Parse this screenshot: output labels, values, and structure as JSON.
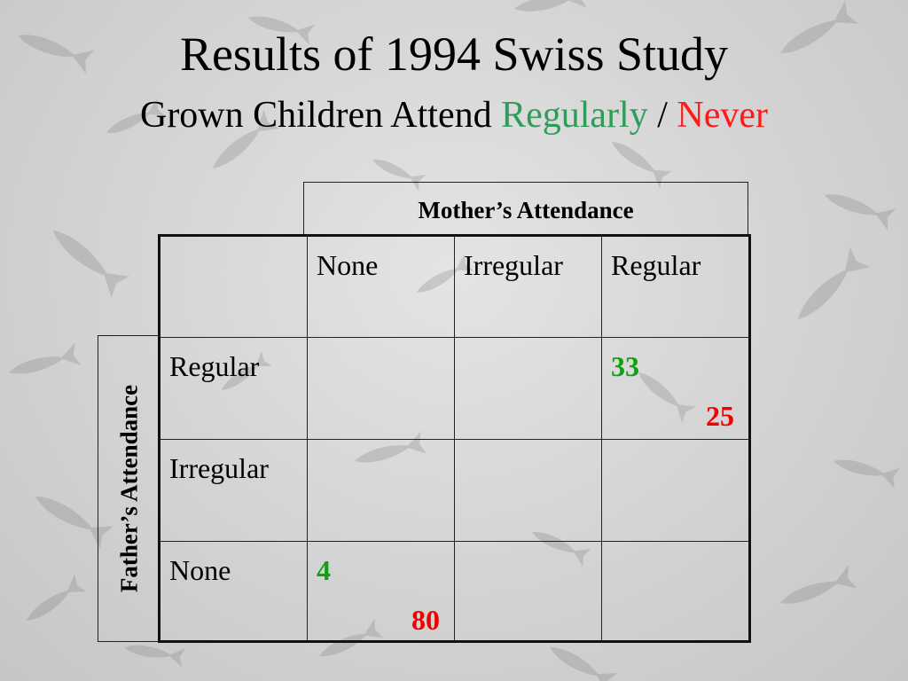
{
  "slide": {
    "title": "Results of 1994 Swiss Study",
    "subtitle_prefix": "Grown Children Attend ",
    "subtitle_regularly": "Regularly",
    "subtitle_separator": " / ",
    "subtitle_never": "Never"
  },
  "table": {
    "mother_header": "Mother’s Attendance",
    "father_header": "Father’s Attendance",
    "columns": [
      "None",
      "Irregular",
      "Regular"
    ],
    "rows": [
      {
        "label": "Regular",
        "cells": [
          {},
          {},
          {
            "regularly": "33",
            "never": "25"
          }
        ]
      },
      {
        "label": "Irregular",
        "cells": [
          {},
          {},
          {}
        ]
      },
      {
        "label": "None",
        "cells": [
          {
            "regularly": "4",
            "never": "80"
          },
          {},
          {}
        ]
      }
    ]
  },
  "colors": {
    "regularly_title": "#2f9c5a",
    "never_title": "#ff1a1a",
    "regularly_value": "#12a012",
    "never_value": "#f00000"
  }
}
